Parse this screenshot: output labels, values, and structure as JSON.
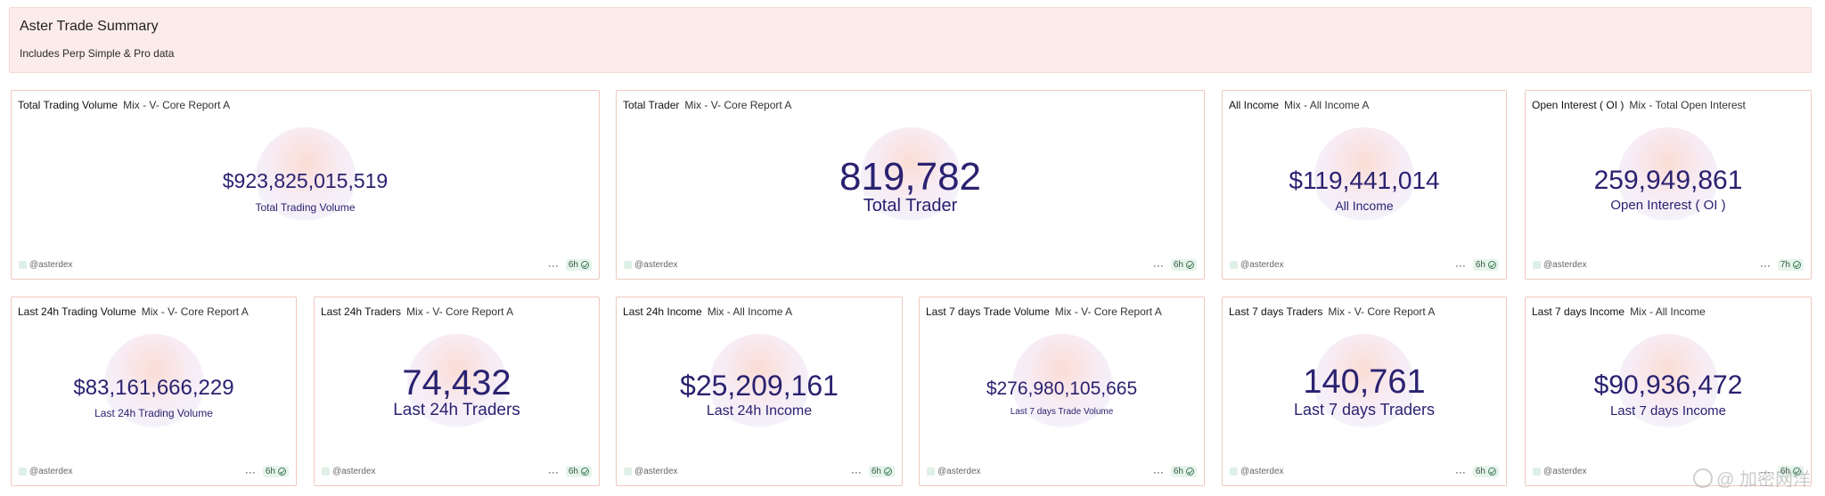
{
  "header": {
    "title": "Aster Trade Summary",
    "subtitle": "Includes Perp Simple & Pro data"
  },
  "cards": [
    {
      "name": "Total Trading Volume",
      "query": "Mix - V- Core Report A",
      "value": "$923,825,015,519",
      "label": "Total Trading Volume",
      "owner": "@asterdex",
      "age": "6h"
    },
    {
      "name": "Total Trader",
      "query": "Mix - V- Core Report A",
      "value": "819,782",
      "label": "Total Trader",
      "owner": "@asterdex",
      "age": "6h"
    },
    {
      "name": "All Income",
      "query": "Mix - All Income A",
      "value": "$119,441,014",
      "label": "All Income",
      "owner": "@asterdex",
      "age": "6h"
    },
    {
      "name": "Open Interest ( OI )",
      "query": "Mix - Total Open Interest",
      "value": "259,949,861",
      "label": "Open Interest ( OI )",
      "owner": "@asterdex",
      "age": "7h"
    },
    {
      "name": "Last 24h Trading Volume",
      "query": "Mix - V- Core Report A",
      "value": "$83,161,666,229",
      "label": "Last 24h Trading Volume",
      "owner": "@asterdex",
      "age": "6h"
    },
    {
      "name": "Last 24h Traders",
      "query": "Mix - V- Core Report A",
      "value": "74,432",
      "label": "Last 24h Traders",
      "owner": "@asterdex",
      "age": "6h"
    },
    {
      "name": "Last 24h Income",
      "query": "Mix - All Income A",
      "value": "$25,209,161",
      "label": "Last 24h Income",
      "owner": "@asterdex",
      "age": "6h"
    },
    {
      "name": "Last 7 days Trade Volume",
      "query": "Mix - V- Core Report A",
      "value": "$276,980,105,665",
      "label": "Last 7 days Trade Volume",
      "owner": "@asterdex",
      "age": "6h"
    },
    {
      "name": "Last 7 days Traders",
      "query": "Mix - V- Core Report A",
      "value": "140,761",
      "label": "Last 7 days Traders",
      "owner": "@asterdex",
      "age": "6h"
    },
    {
      "name": "Last 7 days Income",
      "query": "Mix - All Income",
      "value": "$90,936,472",
      "label": "Last 7 days Income",
      "owner": "@asterdex",
      "age": "6h"
    }
  ],
  "footer_more": "···",
  "watermark": "@ 加密网洋"
}
